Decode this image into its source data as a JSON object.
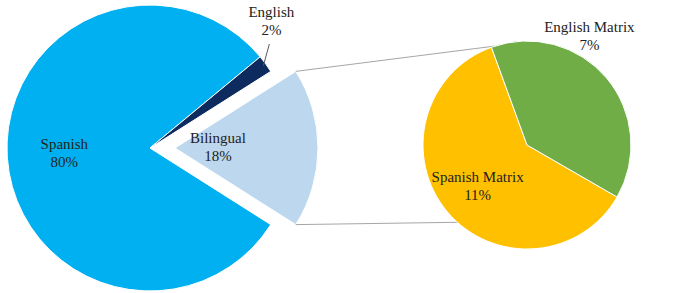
{
  "chart_data": [
    {
      "type": "pie",
      "categories": [
        "Spanish",
        "English",
        "Bilingual"
      ],
      "values": [
        80,
        2,
        18
      ],
      "value_labels": [
        "80%",
        "2%",
        "18%"
      ],
      "colors": [
        "#00b0f0",
        "#0d2b5e",
        "#bdd7ee"
      ],
      "data_labels": true
    },
    {
      "type": "pie",
      "categories": [
        "Spanish Matrix",
        "English Matrix"
      ],
      "values": [
        11,
        7
      ],
      "value_labels": [
        "11%",
        "7%"
      ],
      "colors": [
        "#ffc000",
        "#70ad47"
      ],
      "data_labels": true
    }
  ]
}
